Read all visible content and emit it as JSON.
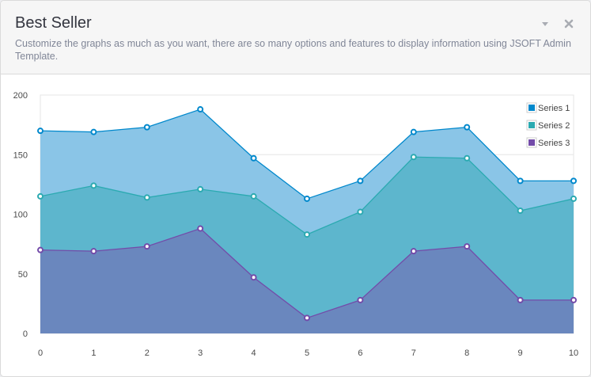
{
  "panel": {
    "title": "Best Seller",
    "subtitle": "Customize the graphs as much as you want, there are so many options and features to display information using JSOFT Admin Template.",
    "actions": [
      {
        "name": "toggle-icon",
        "glyph": "▾"
      },
      {
        "name": "close-icon",
        "glyph": "✖"
      }
    ]
  },
  "chart_data": {
    "type": "area",
    "stacked": true,
    "x": [
      0,
      1,
      2,
      3,
      4,
      5,
      6,
      7,
      8,
      9,
      10
    ],
    "xlim": [
      0,
      10
    ],
    "ylim": [
      0,
      200
    ],
    "yticks": [
      0,
      50,
      100,
      150,
      200
    ],
    "xticks": [
      0,
      1,
      2,
      3,
      4,
      5,
      6,
      7,
      8,
      9,
      10
    ],
    "grid": true,
    "legend_position": "top-right",
    "series": [
      {
        "name": "Series 1",
        "color": "#0088cc",
        "fill": "#8ac5e7",
        "cumulative": [
          170,
          169,
          173,
          188,
          147,
          113,
          128,
          169,
          173,
          128,
          128
        ]
      },
      {
        "name": "Series 2",
        "color": "#2baab1",
        "fill": "#5db6cd",
        "cumulative": [
          115,
          124,
          114,
          121,
          115,
          83,
          102,
          148,
          147,
          103,
          113
        ]
      },
      {
        "name": "Series 3",
        "color": "#734ba9",
        "fill": "#6a87be",
        "cumulative": [
          70,
          69,
          73,
          88,
          47,
          13,
          28,
          69,
          73,
          28,
          28
        ]
      }
    ]
  }
}
